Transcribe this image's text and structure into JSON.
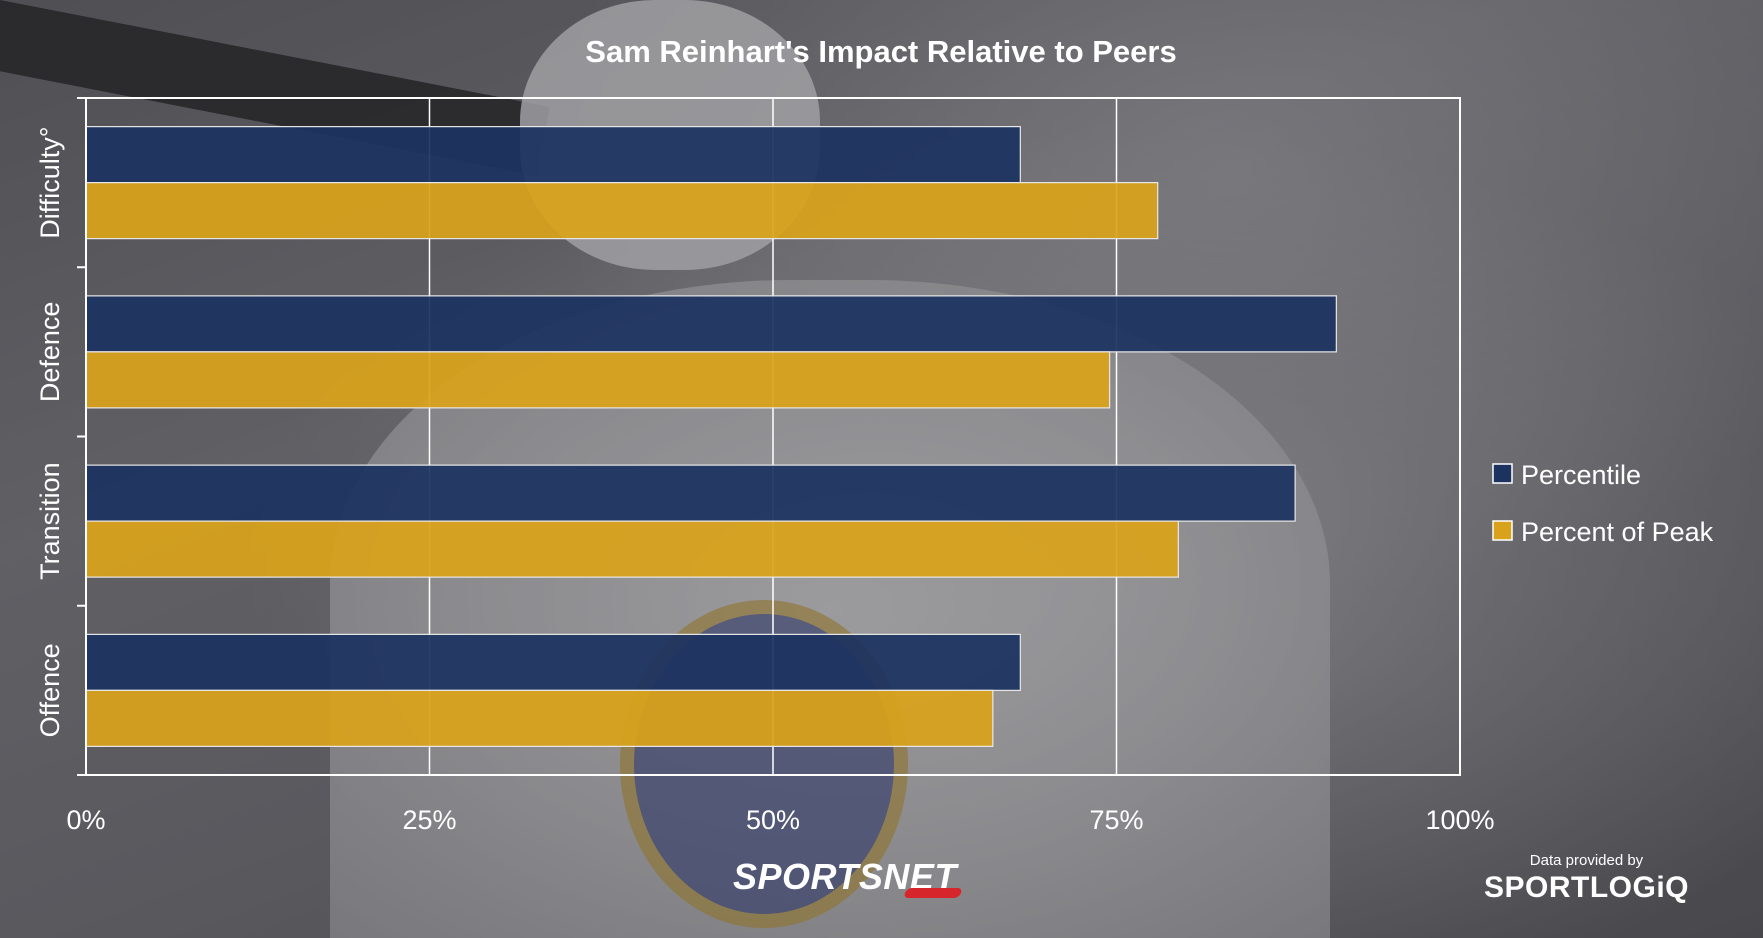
{
  "chart_data": {
    "type": "bar",
    "orientation": "horizontal",
    "title": "Sam Reinhart's Impact Relative to Peers",
    "categories": [
      "Difficulty°",
      "Defence",
      "Transition",
      "Offence"
    ],
    "series": [
      {
        "name": "Percentile",
        "color": "#1c3360",
        "values": [
          68,
          91,
          88,
          68
        ]
      },
      {
        "name": "Percent of Peak",
        "color": "#d9a21b",
        "values": [
          78,
          74.5,
          79.5,
          66
        ]
      }
    ],
    "xlim": [
      0,
      100
    ],
    "ticks": [
      0,
      25,
      50,
      75,
      100
    ],
    "tick_labels": [
      "0%",
      "25%",
      "50%",
      "75%",
      "100%"
    ],
    "xlabel": "",
    "ylabel": "",
    "grid": true,
    "legend_position": "right"
  },
  "credits": {
    "provider_prefix": "Data provided by",
    "provider_name": "SPORTLOGiQ",
    "network": "SPORTSNET"
  }
}
